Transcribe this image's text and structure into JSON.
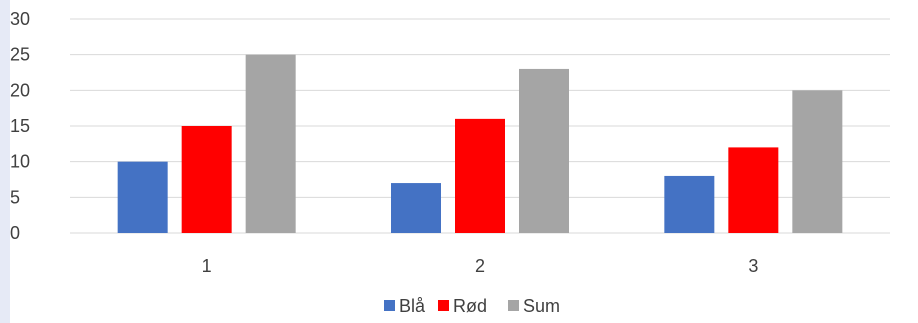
{
  "chart_data": {
    "type": "bar",
    "categories": [
      "1",
      "2",
      "3"
    ],
    "series": [
      {
        "name": "Blå",
        "values": [
          10,
          7,
          8
        ],
        "color": "#4472c4"
      },
      {
        "name": "Rød",
        "values": [
          15,
          16,
          12
        ],
        "color": "#ff0000"
      },
      {
        "name": "Sum",
        "values": [
          25,
          23,
          20
        ],
        "color": "#a5a5a5"
      }
    ],
    "ylim": [
      0,
      30
    ],
    "yticks": [
      "0",
      "5",
      "10",
      "15",
      "20",
      "25",
      "30"
    ],
    "grid": true,
    "legend_position": "bottom",
    "gridline_color": "#d9d9d9"
  }
}
